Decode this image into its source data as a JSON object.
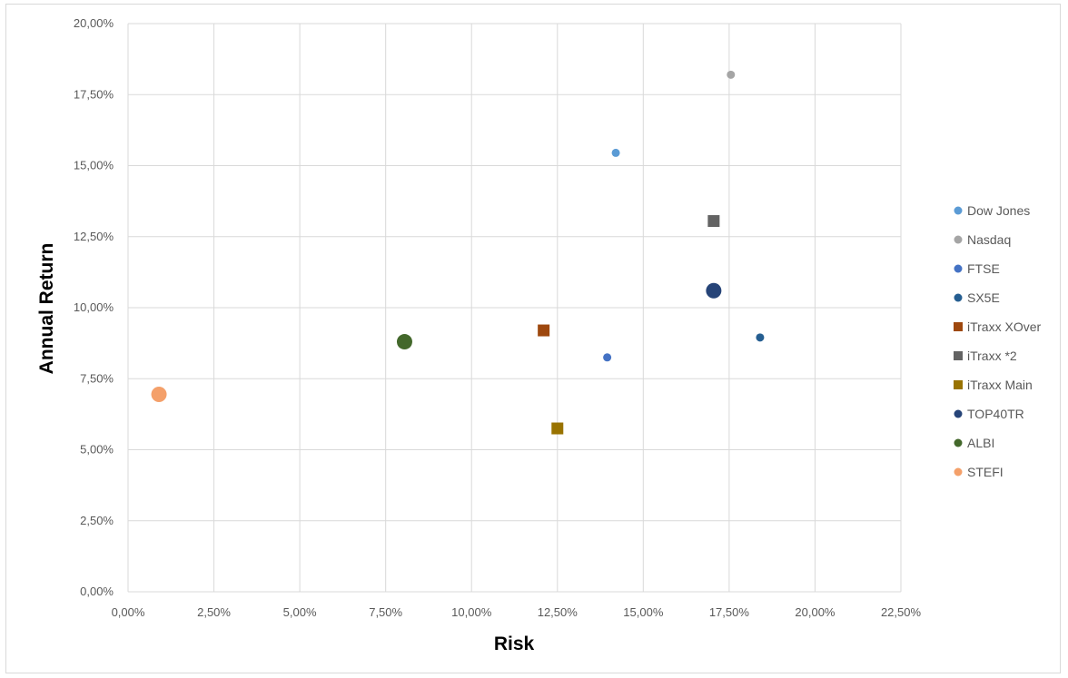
{
  "chart_data": {
    "type": "scatter",
    "title": "",
    "xlabel": "Risk",
    "ylabel": "Annual Return",
    "xlim": [
      0,
      22.5
    ],
    "ylim": [
      0,
      20
    ],
    "x_ticks": [
      "0,00%",
      "2,50%",
      "5,00%",
      "7,50%",
      "10,00%",
      "12,50%",
      "15,00%",
      "17,50%",
      "20,00%",
      "22,50%"
    ],
    "y_ticks": [
      "0,00%",
      "2,50%",
      "5,00%",
      "7,50%",
      "10,00%",
      "12,50%",
      "15,00%",
      "17,50%",
      "20,00%"
    ],
    "grid": true,
    "legend_position": "right",
    "series": [
      {
        "name": "Dow Jones",
        "x": 14.2,
        "y": 15.45,
        "color": "#5b9bd5",
        "marker": "circle",
        "size": "small"
      },
      {
        "name": "Nasdaq",
        "x": 17.55,
        "y": 18.2,
        "color": "#a5a5a5",
        "marker": "circle",
        "size": "small"
      },
      {
        "name": "FTSE",
        "x": 13.95,
        "y": 8.25,
        "color": "#4472c4",
        "marker": "circle",
        "size": "small"
      },
      {
        "name": "SX5E",
        "x": 18.4,
        "y": 8.95,
        "color": "#255e91",
        "marker": "circle",
        "size": "small"
      },
      {
        "name": "iTraxx XOver",
        "x": 12.1,
        "y": 9.2,
        "color": "#9e480e",
        "marker": "square",
        "size": "medium"
      },
      {
        "name": "iTraxx *2",
        "x": 17.05,
        "y": 13.05,
        "color": "#636363",
        "marker": "square",
        "size": "medium"
      },
      {
        "name": "iTraxx Main",
        "x": 12.5,
        "y": 5.75,
        "color": "#997300",
        "marker": "square",
        "size": "medium"
      },
      {
        "name": "TOP40TR",
        "x": 17.05,
        "y": 10.6,
        "color": "#264478",
        "marker": "circle",
        "size": "large"
      },
      {
        "name": "ALBI",
        "x": 8.05,
        "y": 8.8,
        "color": "#43682b",
        "marker": "circle",
        "size": "large"
      },
      {
        "name": "STEFI",
        "x": 0.9,
        "y": 6.95,
        "color": "#f4a06a",
        "marker": "circle",
        "size": "large"
      }
    ]
  }
}
